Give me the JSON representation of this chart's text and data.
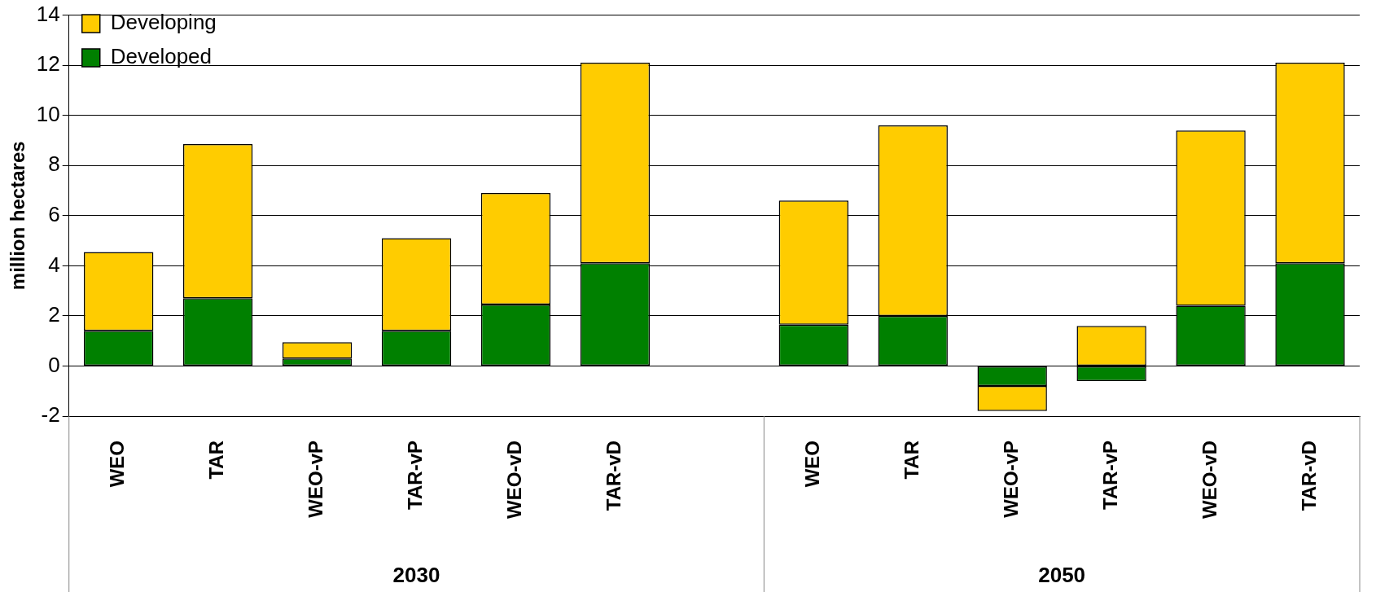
{
  "chart_data": {
    "type": "bar",
    "stacked": true,
    "ylabel": "million hectares",
    "categories": [
      "WEO",
      "TAR",
      "WEO-vP",
      "TAR-vP",
      "WEO-vD",
      "TAR-vD",
      null,
      "WEO",
      "TAR",
      "WEO-vP",
      "TAR-vP",
      "WEO-vD",
      "TAR-vD"
    ],
    "series": [
      {
        "name": "Developed",
        "color": "#008000",
        "values": [
          1.4,
          2.7,
          0.3,
          1.4,
          2.45,
          4.1,
          null,
          1.65,
          2.0,
          -0.8,
          -0.6,
          2.4,
          4.1
        ]
      },
      {
        "name": "Developing",
        "color": "#ffcc00",
        "values": [
          3.15,
          6.15,
          0.65,
          3.7,
          4.45,
          8.0,
          null,
          4.95,
          7.6,
          -1.0,
          1.6,
          7.0,
          8.0
        ]
      }
    ],
    "ylim": [
      -2,
      14
    ],
    "yticks": [
      -2,
      0,
      2,
      4,
      6,
      8,
      10,
      12,
      14
    ],
    "grid": "y",
    "legend": "top left",
    "annotations": [
      "2030",
      "2050"
    ]
  }
}
